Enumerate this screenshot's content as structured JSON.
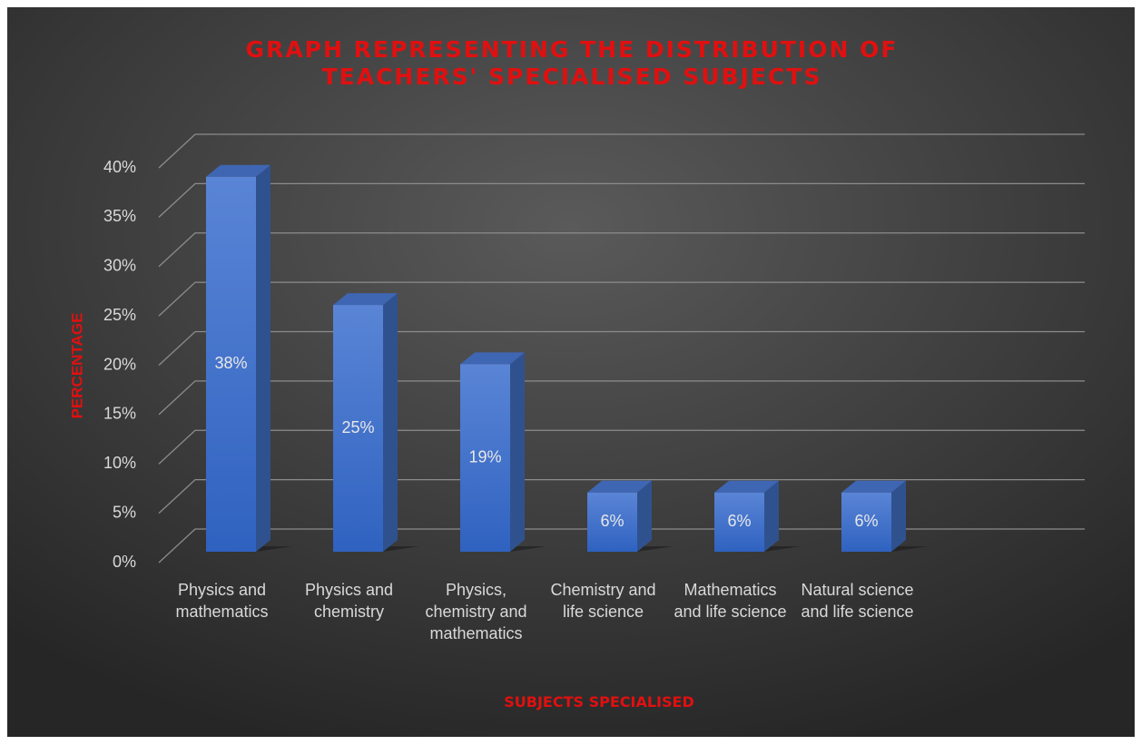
{
  "chart_data": {
    "type": "bar",
    "title": "GRAPH REPRESENTING THE DISTRIBUTION OF TEACHERS' SPECIALISED SUBJECTS",
    "x_label": "SUBJECTS SPECIALISED",
    "y_label": "PERCENTAGE",
    "categories": [
      "Physics and mathematics",
      "Physics and chemistry",
      "Physics, chemistry and mathematics",
      "Chemistry and life science",
      "Mathematics and life science",
      "Natural science and life science"
    ],
    "values": [
      38,
      25,
      19,
      6,
      6,
      6
    ],
    "value_labels": [
      "38%",
      "25%",
      "19%",
      "6%",
      "6%",
      "6%"
    ],
    "color": "#4472c4",
    "ylim": [
      0,
      40
    ],
    "yticks": [
      {
        "value": 0,
        "label": "0%"
      },
      {
        "value": 5,
        "label": "5%"
      },
      {
        "value": 10,
        "label": "10%"
      },
      {
        "value": 15,
        "label": "15%"
      },
      {
        "value": 20,
        "label": "20%"
      },
      {
        "value": 25,
        "label": "25%"
      },
      {
        "value": 30,
        "label": "30%"
      },
      {
        "value": 35,
        "label": "35%"
      },
      {
        "value": 40,
        "label": "40%"
      }
    ],
    "grid": true
  }
}
